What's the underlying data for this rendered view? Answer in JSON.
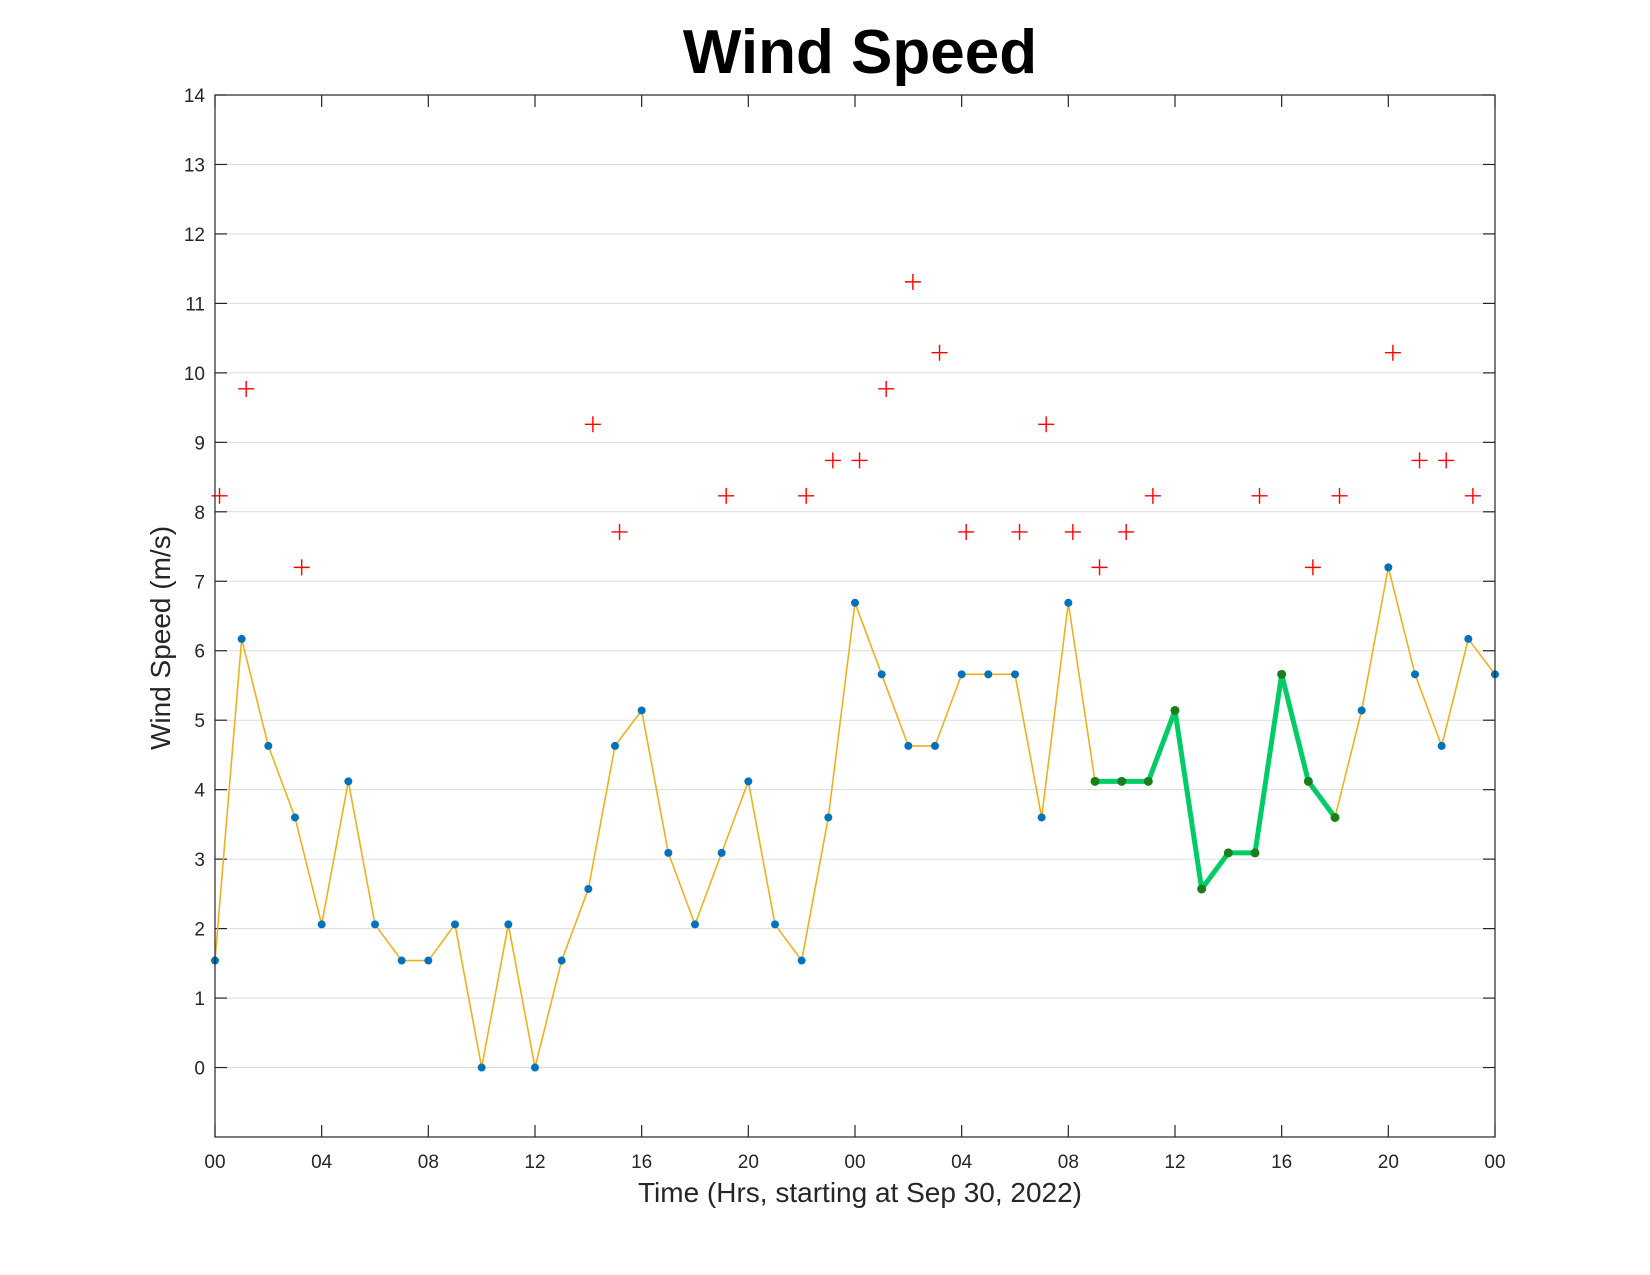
{
  "chart_data": {
    "type": "line",
    "title": "Wind Speed",
    "xlabel": "Time (Hrs, starting at Sep 30, 2022)",
    "ylabel": "Wind Speed (m/s)",
    "xlim": [
      0,
      48
    ],
    "ylim": [
      -1,
      14
    ],
    "grid": "horizontal",
    "xticks": [
      0,
      4,
      8,
      12,
      16,
      20,
      24,
      28,
      32,
      36,
      40,
      44,
      48
    ],
    "xtick_labels": [
      "00",
      "04",
      "08",
      "12",
      "16",
      "20",
      "00",
      "04",
      "08",
      "12",
      "16",
      "20",
      "00"
    ],
    "yticks": [
      0,
      1,
      2,
      3,
      4,
      5,
      6,
      7,
      8,
      9,
      10,
      11,
      12,
      13,
      14
    ],
    "colors": {
      "line": "#EDB120",
      "points": "#0072BD",
      "gusts": "#FF0000",
      "highlight": "#00CC66",
      "highlight_points": "#1A7F1A"
    },
    "series": [
      {
        "type": "line",
        "x": [
          0,
          1,
          2,
          3,
          4,
          5,
          6,
          7,
          8,
          9,
          10,
          11,
          12,
          13,
          14,
          15,
          16,
          17,
          18,
          19,
          20,
          21,
          22,
          23,
          24,
          25,
          26,
          27,
          28,
          29,
          30,
          31,
          32,
          33,
          34,
          35,
          36,
          37,
          38,
          39,
          40,
          41,
          42,
          43,
          44,
          45,
          46,
          47,
          48
        ],
        "values": [
          1.54,
          6.17,
          4.63,
          3.6,
          2.06,
          4.12,
          2.06,
          1.54,
          1.54,
          2.06,
          0,
          2.06,
          0,
          1.54,
          2.57,
          4.63,
          5.14,
          3.09,
          2.06,
          3.09,
          4.12,
          2.06,
          1.54,
          3.6,
          6.69,
          5.66,
          4.63,
          4.63,
          5.66,
          5.66,
          5.66,
          3.6,
          6.69,
          4.12,
          4.12,
          4.12,
          5.14,
          2.57,
          3.09,
          3.09,
          5.66,
          4.12,
          3.6,
          5.14,
          7.2,
          5.66,
          4.63,
          6.17,
          5.66
        ]
      },
      {
        "type": "scatter",
        "marker": "+",
        "x": [
          0.17,
          1.17,
          3.25,
          14.17,
          15.17,
          19.17,
          22.17,
          23.17,
          24.17,
          25.17,
          26.17,
          27.17,
          28.17,
          30.17,
          31.17,
          32.17,
          33.17,
          34.17,
          35.17,
          39.17,
          41.17,
          42.17,
          44.17,
          45.17,
          46.17,
          47.17
        ],
        "values": [
          8.23,
          9.77,
          7.2,
          9.26,
          7.71,
          8.23,
          8.23,
          8.74,
          8.74,
          9.77,
          11.31,
          10.29,
          7.71,
          7.71,
          9.26,
          7.71,
          7.2,
          7.71,
          8.23,
          8.23,
          7.2,
          8.23,
          10.29,
          8.74,
          8.74,
          8.23
        ]
      },
      {
        "type": "line",
        "x": [
          33,
          34,
          35,
          36,
          37,
          38,
          39,
          40,
          41,
          42
        ],
        "values": [
          4.12,
          4.12,
          4.12,
          5.14,
          2.57,
          3.09,
          3.09,
          5.66,
          4.12,
          3.6
        ]
      }
    ]
  }
}
